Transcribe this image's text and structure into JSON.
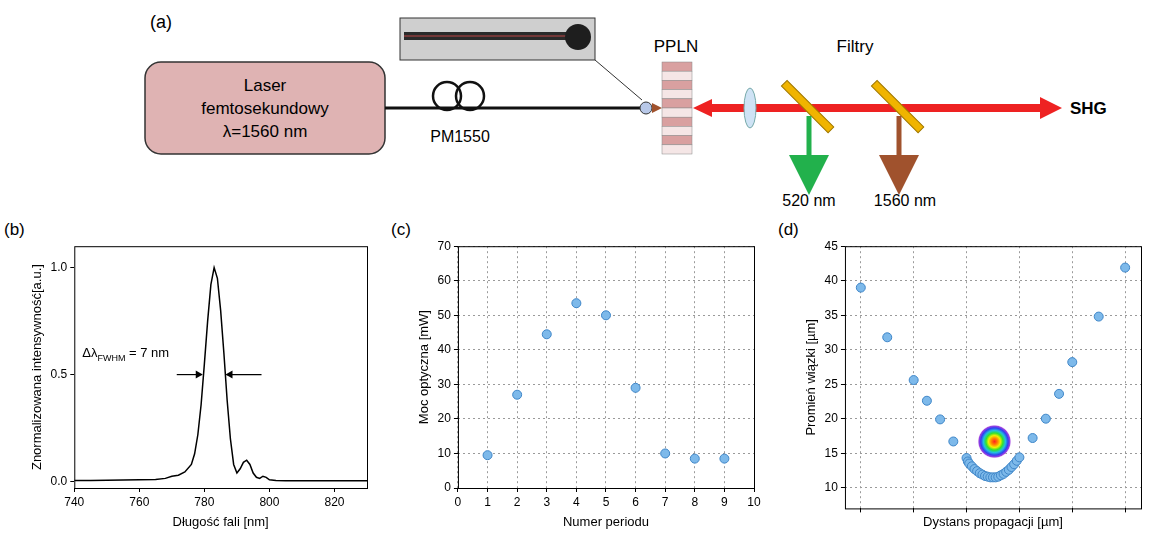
{
  "diagram": {
    "panel": "(a)",
    "laser": [
      "Laser",
      "femtosekundowy",
      "λ=1560 nm"
    ],
    "fiber": "PM1550",
    "crystal": "PPLN",
    "filters": "Filtry",
    "output": "SHG",
    "separated": [
      "520 nm",
      "1560 nm"
    ]
  },
  "chart_data": [
    {
      "panel": "(b)",
      "type": "line",
      "x_label": "Długość fali [nm]",
      "y_label": "Znormalizowana intensywność[a.u.]",
      "x": [
        740,
        745,
        750,
        755,
        760,
        765,
        768,
        770,
        772,
        774,
        776,
        777,
        778,
        779,
        780,
        781,
        782,
        783,
        784,
        785,
        786,
        787,
        788,
        789,
        790,
        791,
        792,
        793,
        794,
        795,
        796,
        797,
        798,
        799,
        800,
        802,
        805,
        810,
        815,
        820,
        825,
        830
      ],
      "values": [
        0.005,
        0.005,
        0.006,
        0.007,
        0.008,
        0.01,
        0.015,
        0.025,
        0.03,
        0.045,
        0.08,
        0.13,
        0.22,
        0.36,
        0.55,
        0.75,
        0.92,
        1.0,
        0.95,
        0.8,
        0.6,
        0.38,
        0.2,
        0.08,
        0.04,
        0.06,
        0.09,
        0.1,
        0.08,
        0.04,
        0.02,
        0.015,
        0.025,
        0.02,
        0.008,
        0.005,
        0.004,
        0.004,
        0.004,
        0.004,
        0.004,
        0.004
      ],
      "color": "#000000",
      "xlim": [
        740,
        830
      ],
      "xticks": [
        740,
        760,
        780,
        800,
        820
      ],
      "ylim": [
        -0.03,
        1.1
      ],
      "yticks": [
        {
          "value": 0,
          "label": "0.0"
        },
        {
          "value": 0.5,
          "label": "0.5"
        },
        {
          "value": 1,
          "label": "1.0"
        }
      ],
      "grid": false,
      "annotation": {
        "text": "Δλ",
        "subscript": "FWHM",
        "after": " = 7 nm",
        "fwhm_range": [
          779.5,
          786.5
        ],
        "fwhm_level": 0.5
      }
    },
    {
      "panel": "(c)",
      "type": "scatter",
      "x_label": "Numer periodu",
      "y_label": "Moc optyczna [mW]",
      "x": [
        1,
        2,
        3,
        4,
        5,
        6,
        7,
        8,
        9
      ],
      "values": [
        9.5,
        27,
        44.5,
        53.5,
        50,
        29,
        10,
        8.5,
        8.5
      ],
      "color": "#7db9ea",
      "xlim": [
        0,
        10
      ],
      "xticks": [
        0,
        1,
        2,
        3,
        4,
        5,
        6,
        7,
        8,
        9,
        10
      ],
      "ylim": [
        0,
        70
      ],
      "yticks": [
        0,
        10,
        20,
        30,
        40,
        50,
        60,
        70
      ],
      "grid": true
    },
    {
      "panel": "(d)",
      "type": "scatter",
      "x_label": "Dystans propagacji [µm]",
      "y_label": "Promień wiązki [µm]",
      "x": [
        0,
        100,
        200,
        250,
        300,
        350,
        400,
        405,
        410,
        420,
        430,
        440,
        450,
        460,
        470,
        480,
        490,
        500,
        510,
        520,
        530,
        540,
        550,
        560,
        570,
        580,
        590,
        600,
        650,
        700,
        750,
        800,
        900,
        1000
      ],
      "values": [
        39,
        31.8,
        25.6,
        22.6,
        19.9,
        16.7,
        14.3,
        13.8,
        13.5,
        13.1,
        12.7,
        12.4,
        12.1,
        11.9,
        11.7,
        11.6,
        11.5,
        11.5,
        11.5,
        11.6,
        11.8,
        12.0,
        12.3,
        12.6,
        13.0,
        13.4,
        13.9,
        14.4,
        17.2,
        20,
        23.6,
        28.2,
        34.8,
        41.9
      ],
      "color": "#7db9ea",
      "xlim": [
        -60,
        1060
      ],
      "xticks": [
        0,
        200,
        400,
        600,
        800,
        1000
      ],
      "ylim": [
        7,
        45
      ],
      "yticks": [
        10,
        15,
        20,
        25,
        30,
        35,
        40,
        45
      ],
      "grid": true,
      "tick_labels": "y"
    }
  ]
}
